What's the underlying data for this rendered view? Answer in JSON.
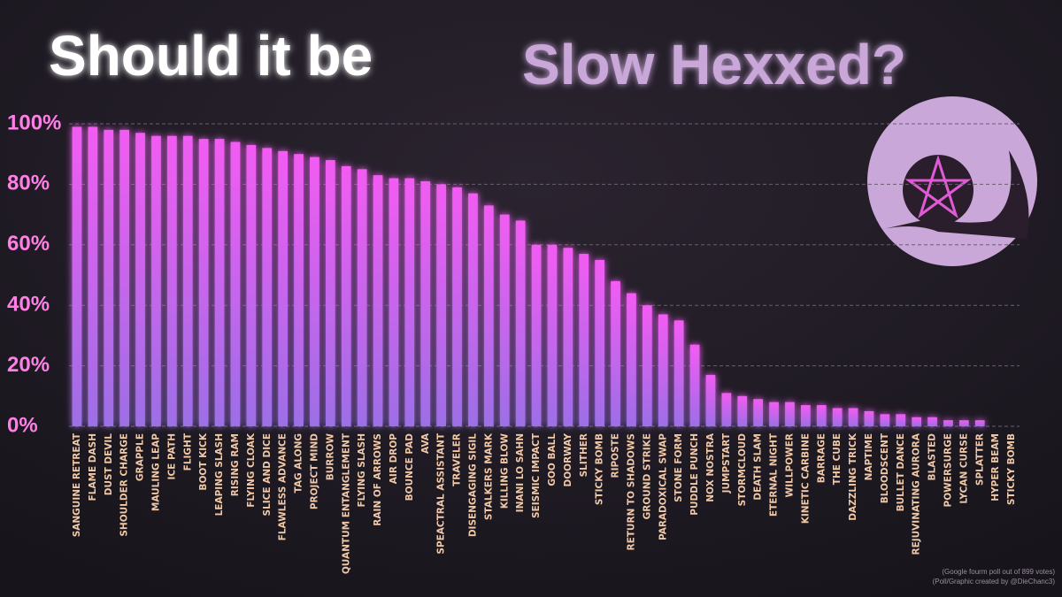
{
  "chart_data": {
    "type": "bar",
    "title": "Should it be",
    "title_highlight": "Slow Hexxed?",
    "footnotes": [
      "(Google fourm poll out of 899 votes)",
      "(Poll/Graphic created by @DieChanc3)"
    ],
    "categories": [
      "SANGUINE RETREAT",
      "FLAME DASH",
      "DUST DEVIL",
      "SHOULDER CHARGE",
      "GRAPPLE",
      "MAULING LEAP",
      "ICE PATH",
      "FLIGHT",
      "BOOT KICK",
      "LEAPING SLASH",
      "RISING RAM",
      "FLYING CLOAK",
      "SLICE AND DICE",
      "FLAWLESS ADVANCE",
      "TAG ALONG",
      "PROJECT MIND",
      "BURROW",
      "QUANTUM ENTANGLEMENT",
      "FLYING SLASH",
      "RAIN OF ARROWS",
      "AIR DROP",
      "BOUNCE PAD",
      "AVA",
      "SPEACTRAL ASSISTANT",
      "TRAVELER",
      "DISENGAGING SIGIL",
      "STALKERS MARK",
      "KILLING BLOW",
      "INANI LO SAHN",
      "SEISMIC IMPACT",
      "GOO BALL",
      "DOORWAY",
      "SLITHER",
      "STICKY BOMB",
      "RIPOSTE",
      "RETURN TO SHADOWS",
      "GROUND STRIKE",
      "PARADOXICAL SWAP",
      "STONE FORM",
      "PUDDLE PUNCH",
      "NOX NOSTRA",
      "JUMPSTART",
      "STORMCLOUD",
      "DEATH SLAM",
      "ETERNAL NIGHT",
      "WILLPOWER",
      "KINETIC CARBINE",
      "BARRAGE",
      "THE CUBE",
      "DAZZLING TRICK",
      "NAPTIME",
      "BLOODSCENT",
      "BULLET DANCE",
      "REJUVINATING AURORA",
      "BLASTED",
      "POWERSURGE",
      "LYCAN CURSE",
      "SPLATTER",
      "HYPER BEAM",
      "STICKY BOMB"
    ],
    "values": [
      99,
      99,
      98,
      98,
      97,
      96,
      96,
      96,
      95,
      95,
      94,
      93,
      92,
      91,
      90,
      89,
      88,
      86,
      85,
      83,
      82,
      82,
      81,
      80,
      79,
      77,
      73,
      70,
      68,
      60,
      60,
      59,
      57,
      55,
      48,
      44,
      40,
      37,
      35,
      27,
      17,
      11,
      10,
      9,
      8,
      8,
      7,
      7,
      6,
      6,
      5,
      4,
      4,
      3,
      3,
      2,
      2,
      2,
      0,
      0
    ],
    "color": "#ee5cf0",
    "ylim": [
      0,
      100
    ],
    "yticks": [
      {
        "value": 0,
        "label": "0%"
      },
      {
        "value": 20,
        "label": "20%"
      },
      {
        "value": 40,
        "label": "40%"
      },
      {
        "value": 60,
        "label": "60%"
      },
      {
        "value": 80,
        "label": "80%"
      },
      {
        "value": 100,
        "label": "100%"
      }
    ],
    "grid": true
  }
}
